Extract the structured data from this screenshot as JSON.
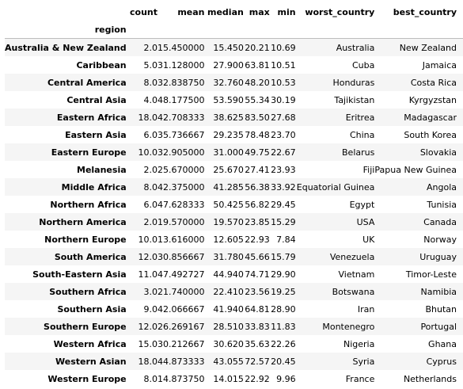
{
  "columns": [
    "count",
    "mean",
    "median",
    "max",
    "min",
    "worst_country",
    "best_country"
  ],
  "index_name": "region",
  "rows": [
    {
      "region": "Australia & New Zealand",
      "cells": [
        "2.0",
        "15.450000",
        "15.450",
        "20.21",
        "10.69",
        "Australia",
        "New Zealand"
      ]
    },
    {
      "region": "Caribbean",
      "cells": [
        "5.0",
        "31.128000",
        "27.900",
        "63.81",
        "10.51",
        "Cuba",
        "Jamaica"
      ]
    },
    {
      "region": "Central America",
      "cells": [
        "8.0",
        "32.838750",
        "32.760",
        "48.20",
        "10.53",
        "Honduras",
        "Costa Rica"
      ]
    },
    {
      "region": "Central Asia",
      "cells": [
        "4.0",
        "48.177500",
        "53.590",
        "55.34",
        "30.19",
        "Tajikistan",
        "Kyrgyzstan"
      ]
    },
    {
      "region": "Eastern Africa",
      "cells": [
        "18.0",
        "42.708333",
        "38.625",
        "83.50",
        "27.68",
        "Eritrea",
        "Madagascar"
      ]
    },
    {
      "region": "Eastern Asia",
      "cells": [
        "6.0",
        "35.736667",
        "29.235",
        "78.48",
        "23.70",
        "China",
        "South Korea"
      ]
    },
    {
      "region": "Eastern Europe",
      "cells": [
        "10.0",
        "32.905000",
        "31.000",
        "49.75",
        "22.67",
        "Belarus",
        "Slovakia"
      ]
    },
    {
      "region": "Melanesia",
      "cells": [
        "2.0",
        "25.670000",
        "25.670",
        "27.41",
        "23.93",
        "Fiji",
        "Papua New Guinea"
      ]
    },
    {
      "region": "Middle Africa",
      "cells": [
        "8.0",
        "42.375000",
        "41.285",
        "56.38",
        "33.92",
        "Equatorial Guinea",
        "Angola"
      ]
    },
    {
      "region": "Northern Africa",
      "cells": [
        "6.0",
        "47.628333",
        "50.425",
        "56.82",
        "29.45",
        "Egypt",
        "Tunisia"
      ]
    },
    {
      "region": "Northern America",
      "cells": [
        "2.0",
        "19.570000",
        "19.570",
        "23.85",
        "15.29",
        "USA",
        "Canada"
      ]
    },
    {
      "region": "Northern Europe",
      "cells": [
        "10.0",
        "13.616000",
        "12.605",
        "22.93",
        "7.84",
        "UK",
        "Norway"
      ]
    },
    {
      "region": "South America",
      "cells": [
        "12.0",
        "30.856667",
        "31.780",
        "45.66",
        "15.79",
        "Venezuela",
        "Uruguay"
      ]
    },
    {
      "region": "South-Eastern Asia",
      "cells": [
        "11.0",
        "47.492727",
        "44.940",
        "74.71",
        "29.90",
        "Vietnam",
        "Timor-Leste"
      ]
    },
    {
      "region": "Southern Africa",
      "cells": [
        "3.0",
        "21.740000",
        "22.410",
        "23.56",
        "19.25",
        "Botswana",
        "Namibia"
      ]
    },
    {
      "region": "Southern Asia",
      "cells": [
        "9.0",
        "42.066667",
        "41.940",
        "64.81",
        "28.90",
        "Iran",
        "Bhutan"
      ]
    },
    {
      "region": "Southern Europe",
      "cells": [
        "12.0",
        "26.269167",
        "28.510",
        "33.83",
        "11.83",
        "Montenegro",
        "Portugal"
      ]
    },
    {
      "region": "Western Africa",
      "cells": [
        "15.0",
        "30.212667",
        "30.620",
        "35.63",
        "22.26",
        "Nigeria",
        "Ghana"
      ]
    },
    {
      "region": "Western Asian",
      "cells": [
        "18.0",
        "44.873333",
        "43.055",
        "72.57",
        "20.45",
        "Syria",
        "Cyprus"
      ]
    },
    {
      "region": "Western Europe",
      "cells": [
        "8.0",
        "14.873750",
        "14.015",
        "22.92",
        "9.96",
        "France",
        "Netherlands"
      ]
    }
  ]
}
